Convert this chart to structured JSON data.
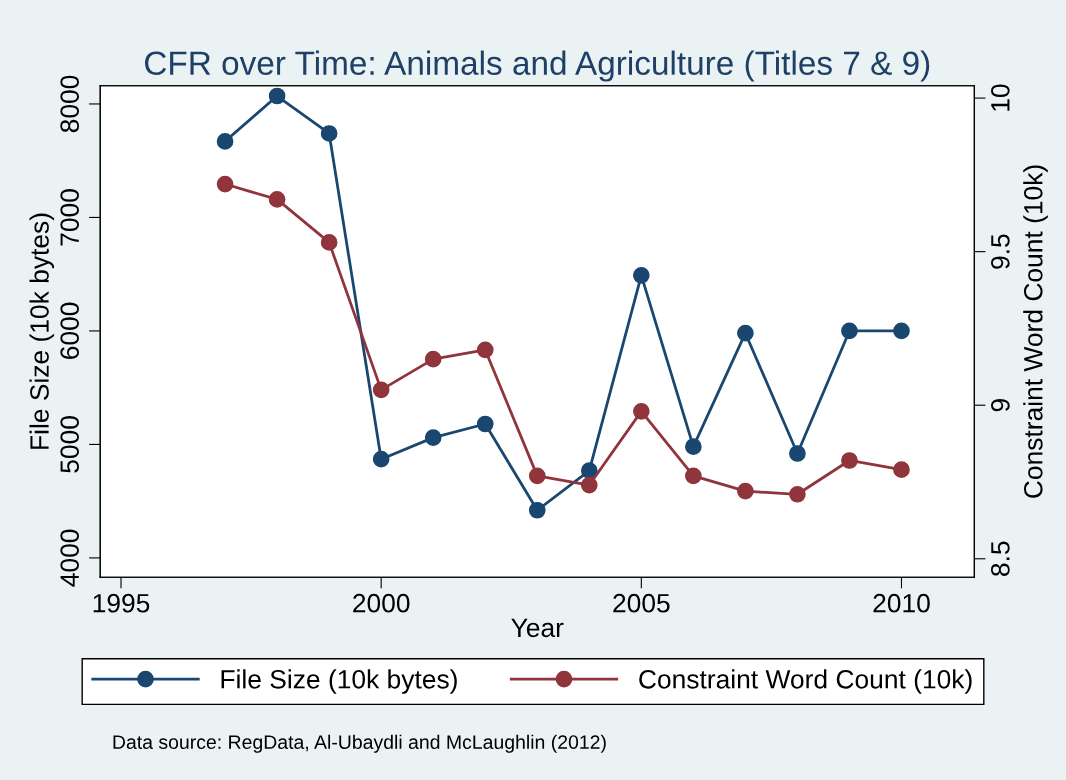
{
  "chart_data": {
    "type": "line",
    "title": "CFR over Time: Animals and Agriculture (Titles 7 & 9)",
    "xlabel": "Year",
    "ylabel": "File Size (10k bytes)",
    "y2label": "Constraint Word Count (10k)",
    "x": [
      1997,
      1998,
      1999,
      2000,
      2001,
      2002,
      2003,
      2004,
      2005,
      2006,
      2007,
      2008,
      2009,
      2010
    ],
    "series": [
      {
        "name": "File Size (10k bytes)",
        "color": "#1a476f",
        "values": [
          7670,
          8070,
          7740,
          4870,
          5060,
          5180,
          4420,
          4770,
          6490,
          4980,
          5980,
          4920,
          6000,
          6000
        ]
      },
      {
        "name": "Constraint Word Count (10k)",
        "color": "#90353b",
        "axis": "y2",
        "values": [
          9.72,
          9.67,
          9.53,
          9.05,
          9.15,
          9.18,
          8.77,
          8.74,
          8.98,
          8.77,
          8.72,
          8.71,
          8.82,
          8.79
        ]
      }
    ],
    "xlim": [
      1994.6,
      2011.4
    ],
    "xticks": [
      1995,
      2000,
      2005,
      2010
    ],
    "ylim": [
      3830,
      8160
    ],
    "yticks": [
      4000,
      5000,
      6000,
      7000,
      8000
    ],
    "y2lim": [
      8.44,
      10.04
    ],
    "y2ticks": [
      8.5,
      9,
      9.5,
      10
    ],
    "marker": "circle",
    "line_style": "solid",
    "grid": false,
    "legend": "bottom",
    "annotations": [
      "Data source: RegData, Al-Ubaydli and McLaughlin (2012)"
    ]
  }
}
